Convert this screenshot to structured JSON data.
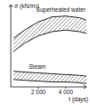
{
  "chart_data": {
    "type": "band",
    "y_label": "σ (kN/m²)",
    "x_label": "t (days)",
    "x": [
      200,
      1000,
      2000,
      3000,
      4000,
      5000,
      5500
    ],
    "series": [
      {
        "name": "Superheated water",
        "color": "#333333",
        "upper": [
          59,
          69,
          79,
          85,
          86,
          84,
          81
        ],
        "lower": [
          43,
          53,
          62,
          67,
          69,
          67,
          65
        ]
      },
      {
        "name": "Steam",
        "color": "#333333",
        "upper": [
          19,
          18,
          17,
          16,
          15,
          14,
          13
        ],
        "lower": [
          9,
          8,
          7,
          6,
          6,
          5,
          4
        ]
      }
    ],
    "xlim": [
      0,
      5500
    ],
    "xticks": [
      {
        "value": 2000,
        "label": "2 000"
      },
      {
        "value": 4000,
        "label": "4 000"
      }
    ],
    "ylim": [
      0,
      100
    ],
    "tick_labels": "x",
    "grid": false
  }
}
